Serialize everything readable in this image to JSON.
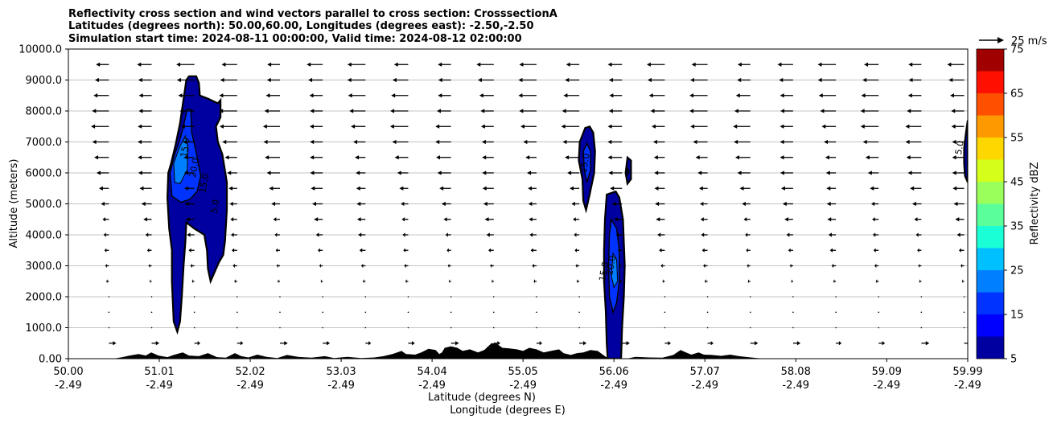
{
  "chart_data": {
    "type": "contour",
    "title_lines": [
      "Reflectivity cross section and wind vectors parallel to cross section: CrosssectionA",
      "Latitudes (degrees north): 50.00,60.00, Longitudes (degrees east): -2.50,-2.50",
      "Simulation start time: 2024-08-11 00:00:00, Valid time: 2024-08-12 02:00:00"
    ],
    "ylabel": "Altitude (meters)",
    "xlabel_lat": "Latitude (degrees N)",
    "xlabel_lon": "Longitude (degrees E)",
    "xlim": [
      50.0,
      59.99
    ],
    "ylim": [
      0,
      10000
    ],
    "grid": "horizontal",
    "x_ticks": [
      {
        "lat": "50.00",
        "lon": "-2.49",
        "v": 50.0
      },
      {
        "lat": "51.01",
        "lon": "-2.49",
        "v": 51.01
      },
      {
        "lat": "52.02",
        "lon": "-2.49",
        "v": 52.02
      },
      {
        "lat": "53.03",
        "lon": "-2.49",
        "v": 53.03
      },
      {
        "lat": "54.04",
        "lon": "-2.49",
        "v": 54.04
      },
      {
        "lat": "55.05",
        "lon": "-2.49",
        "v": 55.05
      },
      {
        "lat": "56.06",
        "lon": "-2.49",
        "v": 56.06
      },
      {
        "lat": "57.07",
        "lon": "-2.49",
        "v": 57.07
      },
      {
        "lat": "58.08",
        "lon": "-2.49",
        "v": 58.08
      },
      {
        "lat": "59.09",
        "lon": "-2.49",
        "v": 59.09
      },
      {
        "lat": "59.99",
        "lon": "-2.49",
        "v": 59.99
      }
    ],
    "y_ticks": [
      {
        "label": "0.00",
        "v": 0
      },
      {
        "label": "1000.0",
        "v": 1000
      },
      {
        "label": "2000.0",
        "v": 2000
      },
      {
        "label": "3000.0",
        "v": 3000
      },
      {
        "label": "4000.0",
        "v": 4000
      },
      {
        "label": "5000.0",
        "v": 5000
      },
      {
        "label": "6000.0",
        "v": 6000
      },
      {
        "label": "7000.0",
        "v": 7000
      },
      {
        "label": "8000.0",
        "v": 8000
      },
      {
        "label": "9000.0",
        "v": 9000
      },
      {
        "label": "10000.0",
        "v": 10000
      }
    ],
    "colorbar": {
      "label": "Reflectivity dBZ",
      "levels": [
        5,
        10,
        15,
        20,
        25,
        30,
        35,
        40,
        45,
        50,
        55,
        60,
        65,
        70,
        75
      ],
      "tick_labels": [
        "5",
        "15",
        "25",
        "35",
        "45",
        "55",
        "65",
        "75"
      ],
      "colors": [
        "#0000a0",
        "#0000ff",
        "#0033ff",
        "#0080ff",
        "#00c0ff",
        "#1affd5",
        "#5aff9a",
        "#9aff5a",
        "#d5ff1a",
        "#ffd700",
        "#ff9900",
        "#ff5000",
        "#ff1000",
        "#a00000"
      ]
    },
    "wind_key": {
      "label": "25 m/s"
    },
    "contour_labels": [
      {
        "text": "15.0",
        "x": 51.33,
        "y": 6800,
        "rot": -80
      },
      {
        "text": "20.0",
        "x": 51.43,
        "y": 6150,
        "rot": -80
      },
      {
        "text": "15.0",
        "x": 51.54,
        "y": 5650,
        "rot": -80
      },
      {
        "text": "5.0",
        "x": 51.66,
        "y": 4900,
        "rot": -80
      },
      {
        "text": "15.0",
        "x": 55.77,
        "y": 6300,
        "rot": -80
      },
      {
        "text": "15.0",
        "x": 55.98,
        "y": 2800,
        "rot": -80
      },
      {
        "text": "20.0",
        "x": 56.06,
        "y": 3000,
        "rot": -80
      },
      {
        "text": "5.0",
        "x": 59.93,
        "y": 6800,
        "rot": -80
      }
    ],
    "cells": [
      {
        "name": "cell-a",
        "outer": [
          [
            51.34,
            9120
          ],
          [
            51.42,
            9120
          ],
          [
            51.45,
            8900
          ],
          [
            51.46,
            8500
          ],
          [
            51.55,
            8400
          ],
          [
            51.62,
            8300
          ],
          [
            51.66,
            8250
          ],
          [
            51.69,
            8350
          ],
          [
            51.69,
            7800
          ],
          [
            51.64,
            7500
          ],
          [
            51.66,
            7000
          ],
          [
            51.71,
            6600
          ],
          [
            51.76,
            5700
          ],
          [
            51.76,
            4800
          ],
          [
            51.74,
            3800
          ],
          [
            51.72,
            3350
          ],
          [
            51.67,
            3100
          ],
          [
            51.58,
            2500
          ],
          [
            51.55,
            2900
          ],
          [
            51.54,
            3500
          ],
          [
            51.51,
            4000
          ],
          [
            51.4,
            4200
          ],
          [
            51.31,
            4400
          ],
          [
            51.3,
            3800
          ],
          [
            51.28,
            3000
          ],
          [
            51.26,
            2000
          ],
          [
            51.24,
            1200
          ],
          [
            51.21,
            870
          ],
          [
            51.17,
            1200
          ],
          [
            51.15,
            2500
          ],
          [
            51.15,
            3500
          ],
          [
            51.12,
            4200
          ],
          [
            51.1,
            5200
          ],
          [
            51.11,
            6000
          ],
          [
            51.14,
            6300
          ],
          [
            51.19,
            6900
          ],
          [
            51.24,
            7600
          ],
          [
            51.26,
            8000
          ],
          [
            51.29,
            8600
          ],
          [
            51.31,
            9000
          ]
        ],
        "inner": [
          [
            51.32,
            8050
          ],
          [
            51.36,
            8050
          ],
          [
            51.37,
            7300
          ],
          [
            51.41,
            6800
          ],
          [
            51.47,
            5900
          ],
          [
            51.43,
            5400
          ],
          [
            51.35,
            5150
          ],
          [
            51.25,
            5050
          ],
          [
            51.15,
            5250
          ],
          [
            51.13,
            6000
          ],
          [
            51.18,
            6600
          ],
          [
            51.23,
            7000
          ],
          [
            51.27,
            7400
          ]
        ],
        "core": [
          [
            51.3,
            7200
          ],
          [
            51.33,
            6800
          ],
          [
            51.32,
            6100
          ],
          [
            51.24,
            5650
          ],
          [
            51.18,
            5700
          ],
          [
            51.17,
            6300
          ],
          [
            51.23,
            6800
          ]
        ]
      },
      {
        "name": "cell-b",
        "outer": [
          [
            55.74,
            7450
          ],
          [
            55.79,
            7500
          ],
          [
            55.83,
            7300
          ],
          [
            55.85,
            6700
          ],
          [
            55.84,
            6000
          ],
          [
            55.79,
            5300
          ],
          [
            55.75,
            4800
          ],
          [
            55.72,
            5100
          ],
          [
            55.71,
            5800
          ],
          [
            55.67,
            6400
          ],
          [
            55.68,
            7000
          ]
        ],
        "inner": [
          [
            55.76,
            6950
          ],
          [
            55.8,
            6700
          ],
          [
            55.8,
            6100
          ],
          [
            55.76,
            5700
          ],
          [
            55.73,
            6100
          ],
          [
            55.72,
            6700
          ]
        ]
      },
      {
        "name": "cell-c",
        "outer": [
          [
            56.21,
            6500
          ],
          [
            56.25,
            6400
          ],
          [
            56.25,
            5800
          ],
          [
            56.21,
            5650
          ],
          [
            56.19,
            6000
          ]
        ],
        "inner": [
          [
            56.21,
            6150
          ],
          [
            56.23,
            6050
          ],
          [
            56.21,
            5950
          ]
        ]
      },
      {
        "name": "cell-d",
        "outer": [
          [
            55.98,
            5300
          ],
          [
            56.08,
            5400
          ],
          [
            56.12,
            5200
          ],
          [
            56.16,
            4500
          ],
          [
            56.18,
            3000
          ],
          [
            56.17,
            2000
          ],
          [
            56.15,
            1000
          ],
          [
            56.14,
            0
          ],
          [
            55.99,
            0
          ],
          [
            55.98,
            500
          ],
          [
            55.97,
            1500
          ],
          [
            55.95,
            2500
          ],
          [
            55.95,
            3500
          ],
          [
            55.96,
            4500
          ]
        ],
        "inner": [
          [
            56.03,
            4500
          ],
          [
            56.09,
            4200
          ],
          [
            56.12,
            3500
          ],
          [
            56.12,
            2500
          ],
          [
            56.09,
            1800
          ],
          [
            56.05,
            1500
          ],
          [
            56.01,
            2000
          ],
          [
            56.0,
            3000
          ],
          [
            56.01,
            4000
          ]
        ],
        "core": [
          [
            56.05,
            3400
          ],
          [
            56.09,
            3200
          ],
          [
            56.1,
            2500
          ],
          [
            56.06,
            2300
          ],
          [
            56.03,
            2700
          ]
        ]
      },
      {
        "name": "cell-e",
        "outer": [
          [
            59.99,
            7700
          ],
          [
            59.99,
            5700
          ],
          [
            59.96,
            5900
          ],
          [
            59.95,
            6300
          ],
          [
            59.95,
            6800
          ],
          [
            59.97,
            7300
          ]
        ]
      }
    ],
    "terrain": [
      [
        50.0,
        0
      ],
      [
        50.5,
        0
      ],
      [
        50.6,
        50
      ],
      [
        50.68,
        100
      ],
      [
        50.78,
        150
      ],
      [
        50.86,
        100
      ],
      [
        50.92,
        200
      ],
      [
        51.0,
        100
      ],
      [
        51.1,
        50
      ],
      [
        51.17,
        120
      ],
      [
        51.27,
        200
      ],
      [
        51.34,
        100
      ],
      [
        51.45,
        80
      ],
      [
        51.55,
        180
      ],
      [
        51.65,
        50
      ],
      [
        51.75,
        30
      ],
      [
        51.85,
        180
      ],
      [
        51.92,
        80
      ],
      [
        52.0,
        40
      ],
      [
        52.1,
        130
      ],
      [
        52.2,
        60
      ],
      [
        52.32,
        20
      ],
      [
        52.43,
        120
      ],
      [
        52.55,
        60
      ],
      [
        52.7,
        30
      ],
      [
        52.85,
        80
      ],
      [
        52.95,
        20
      ],
      [
        53.1,
        60
      ],
      [
        53.25,
        20
      ],
      [
        53.4,
        40
      ],
      [
        53.5,
        80
      ],
      [
        53.6,
        150
      ],
      [
        53.7,
        250
      ],
      [
        53.75,
        150
      ],
      [
        53.85,
        130
      ],
      [
        53.92,
        200
      ],
      [
        54.0,
        320
      ],
      [
        54.08,
        280
      ],
      [
        54.12,
        150
      ],
      [
        54.15,
        200
      ],
      [
        54.18,
        350
      ],
      [
        54.25,
        400
      ],
      [
        54.32,
        350
      ],
      [
        54.38,
        250
      ],
      [
        54.46,
        300
      ],
      [
        54.55,
        200
      ],
      [
        54.62,
        280
      ],
      [
        54.7,
        500
      ],
      [
        54.76,
        480
      ],
      [
        54.82,
        350
      ],
      [
        54.9,
        330
      ],
      [
        54.98,
        300
      ],
      [
        55.05,
        250
      ],
      [
        55.12,
        350
      ],
      [
        55.2,
        300
      ],
      [
        55.28,
        200
      ],
      [
        55.36,
        250
      ],
      [
        55.45,
        300
      ],
      [
        55.5,
        180
      ],
      [
        55.58,
        120
      ],
      [
        55.65,
        180
      ],
      [
        55.72,
        200
      ],
      [
        55.8,
        280
      ],
      [
        55.88,
        250
      ],
      [
        55.95,
        100
      ],
      [
        56.0,
        0
      ],
      [
        56.2,
        0
      ],
      [
        56.3,
        60
      ],
      [
        56.45,
        40
      ],
      [
        56.6,
        30
      ],
      [
        56.72,
        120
      ],
      [
        56.8,
        280
      ],
      [
        56.86,
        200
      ],
      [
        56.92,
        130
      ],
      [
        57.0,
        200
      ],
      [
        57.06,
        130
      ],
      [
        57.15,
        120
      ],
      [
        57.25,
        90
      ],
      [
        57.35,
        130
      ],
      [
        57.45,
        80
      ],
      [
        57.55,
        50
      ],
      [
        57.65,
        20
      ],
      [
        57.75,
        0
      ],
      [
        59.99,
        0
      ]
    ]
  }
}
